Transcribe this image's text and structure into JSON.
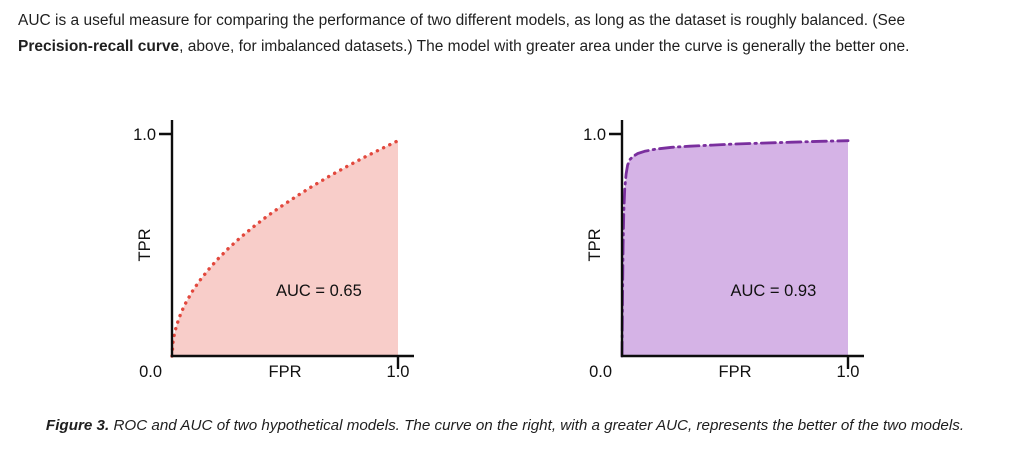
{
  "intro": {
    "part1": "AUC is a useful measure for comparing the performance of two different models, as long as the dataset is roughly balanced. (See ",
    "bold": "Precision-recall curve",
    "part2": ", above, for imbalanced datasets.) The model with greater area under the curve is generally the better one."
  },
  "caption": {
    "label": "Figure 3.",
    "text": " ROC and AUC of two hypothetical models. The curve on the right, with a greater AUC, represents the better of the two models."
  },
  "chart_data": [
    {
      "type": "area",
      "title": "ROC curve of model with lower AUC",
      "xlabel": "FPR",
      "ylabel": "TPR",
      "xlim": [
        0,
        1
      ],
      "ylim": [
        0,
        1
      ],
      "x_ticks": [
        "0.0",
        "1.0"
      ],
      "y_ticks": [
        "1.0"
      ],
      "origin_label": "0.0",
      "annotation": "AUC = 0.65",
      "annotation_pos": [
        0.65,
        0.27
      ],
      "auc": 0.65,
      "line_style": "dotted",
      "line_color": "#e2483d",
      "fill_color": "#f8cdc9",
      "x": [
        0,
        0.005,
        0.01,
        0.02,
        0.04,
        0.06,
        0.09,
        0.12,
        0.16,
        0.2,
        0.25,
        0.3,
        0.36,
        0.42,
        0.48,
        0.55,
        0.62,
        0.7,
        0.78,
        0.86,
        0.93,
        1.0
      ],
      "y": [
        0,
        0.069,
        0.097,
        0.137,
        0.194,
        0.238,
        0.291,
        0.336,
        0.388,
        0.434,
        0.485,
        0.531,
        0.582,
        0.629,
        0.672,
        0.719,
        0.764,
        0.812,
        0.857,
        0.9,
        0.935,
        0.97
      ]
    },
    {
      "type": "area",
      "title": "ROC curve of model with higher AUC",
      "xlabel": "FPR",
      "ylabel": "TPR",
      "xlim": [
        0,
        1
      ],
      "ylim": [
        0,
        1
      ],
      "x_ticks": [
        "0.0",
        "1.0"
      ],
      "y_ticks": [
        "1.0"
      ],
      "origin_label": "0.0",
      "annotation": "AUC = 0.93",
      "annotation_pos": [
        0.67,
        0.27
      ],
      "auc": 0.93,
      "line_style": "dashdot",
      "line_color": "#7a2f9e",
      "fill_color": "#d5b3e6",
      "x": [
        0,
        0.002,
        0.005,
        0.008,
        0.012,
        0.018,
        0.025,
        0.035,
        0.05,
        0.07,
        0.1,
        0.15,
        0.22,
        0.3,
        0.4,
        0.5,
        0.62,
        0.75,
        0.88,
        1.0
      ],
      "y": [
        0,
        0.25,
        0.5,
        0.65,
        0.75,
        0.82,
        0.86,
        0.885,
        0.9,
        0.912,
        0.922,
        0.932,
        0.94,
        0.945,
        0.95,
        0.955,
        0.959,
        0.963,
        0.967,
        0.97
      ]
    }
  ]
}
